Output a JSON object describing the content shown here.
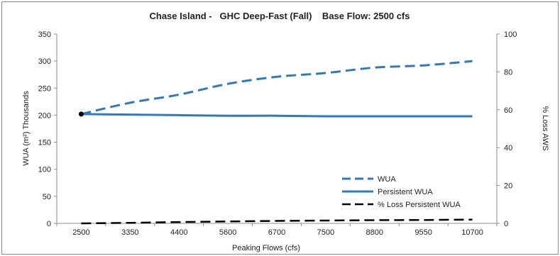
{
  "colors": {
    "primary_series": "#2e79c0",
    "secondary_series": "#000000",
    "frame": "#8c8c8c"
  },
  "chart_data": {
    "type": "line",
    "title": "Chase Island -   GHC Deep-Fast (Fall)    Base Flow: 2500 cfs",
    "xlabel": "Peaking Flows (cfs)",
    "ylabel": "WUA (m²)  Thousands",
    "y2label": "% Loss AWS",
    "categories": [
      "2500",
      "3350",
      "4400",
      "5600",
      "6700",
      "7500",
      "8800",
      "9550",
      "10700"
    ],
    "ylim": [
      0,
      350
    ],
    "yticks": [
      0,
      50,
      100,
      150,
      200,
      250,
      300,
      350
    ],
    "y2lim": [
      0,
      100
    ],
    "y2ticks": [
      0,
      20,
      40,
      60,
      80,
      100
    ],
    "grid": false,
    "legend_position": "bottom-right",
    "series": [
      {
        "name": "WUA",
        "axis": "left",
        "style": "dashed",
        "color": "#2e79c0",
        "values": [
          202,
          223,
          238,
          258,
          271,
          278,
          288,
          292,
          300
        ]
      },
      {
        "name": "Persistent  WUA",
        "axis": "left",
        "style": "solid",
        "color": "#2e79c0",
        "values": [
          202,
          201,
          200,
          199,
          199,
          198,
          198,
          198,
          198
        ]
      },
      {
        "name": "% Loss Persistent WUA",
        "axis": "right",
        "style": "dashed",
        "color": "#000000",
        "values": [
          0,
          0.3,
          0.7,
          1.0,
          1.3,
          1.5,
          1.7,
          1.8,
          2.0
        ]
      }
    ],
    "marker": {
      "category": "2500",
      "value": 202,
      "axis": "left"
    }
  }
}
